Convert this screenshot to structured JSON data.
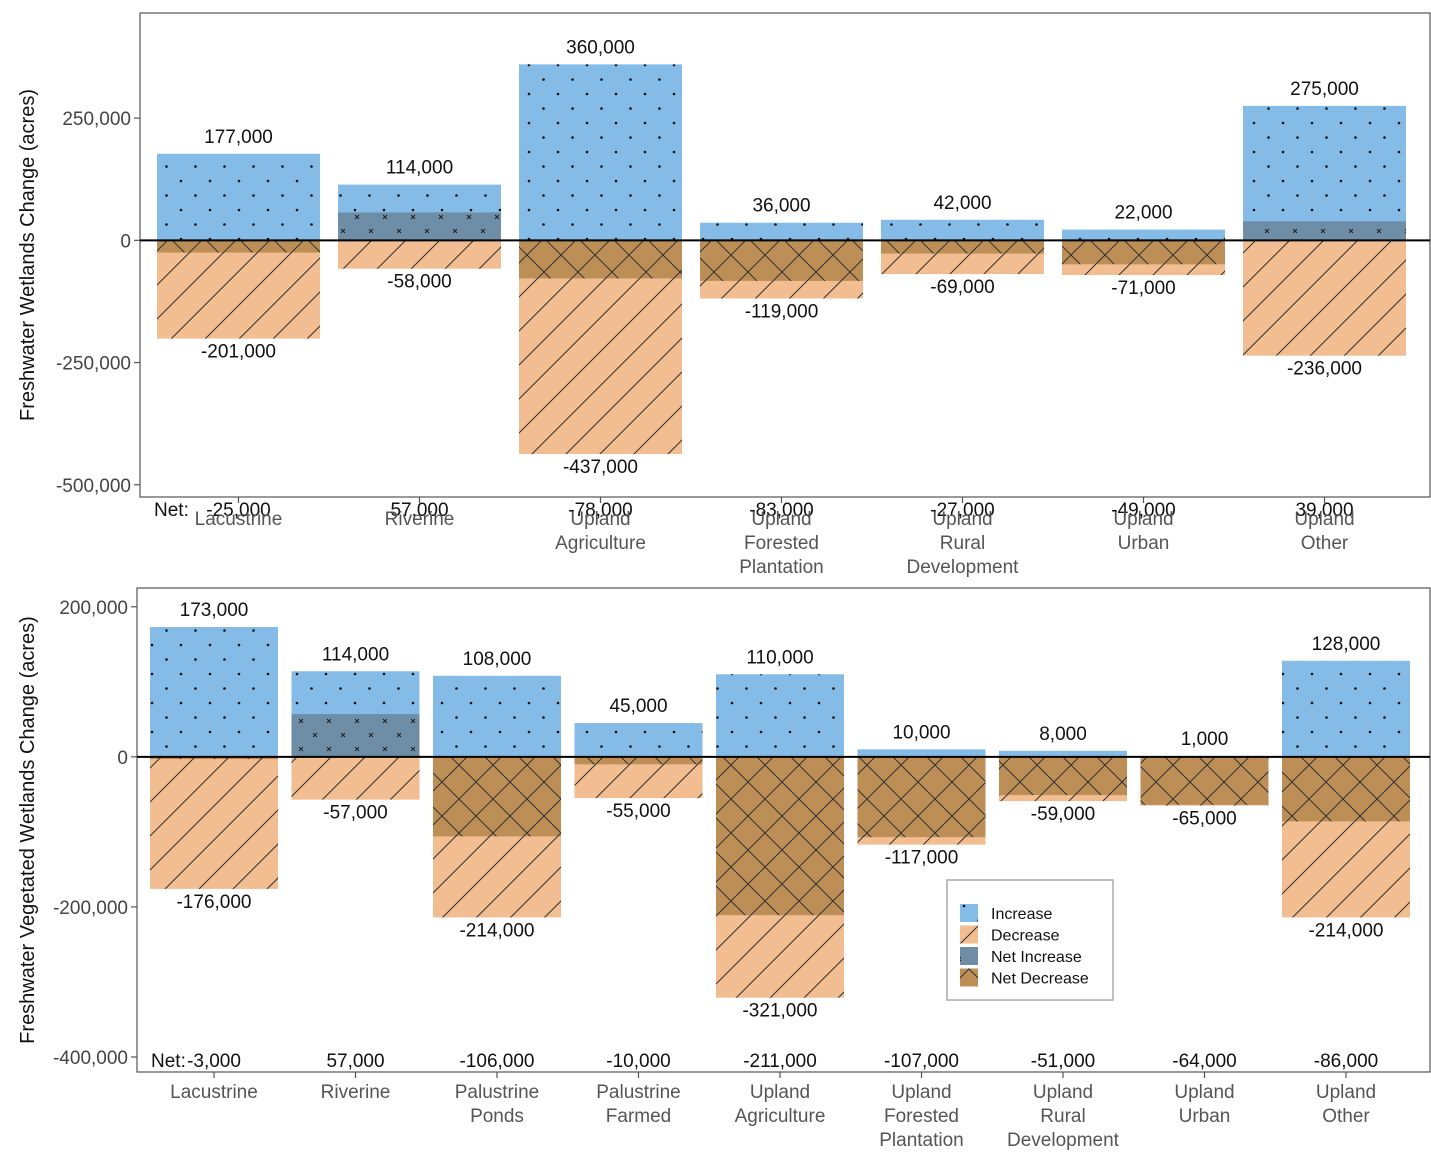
{
  "colors": {
    "increase": "#85bbe7",
    "decrease": "#f2bd90",
    "net_increase": "#6e8ea8",
    "net_decrease": "#bd8f57",
    "panel_border": "#555555",
    "zero_line": "#000000",
    "legend_border": "#aaaaaa"
  },
  "fill_patterns": {
    "increase": "dots",
    "decrease": "diagonal",
    "net_increase": "crosses",
    "net_decrease": "crosshatch"
  },
  "net_prefix": "Net:",
  "legend": {
    "items": [
      {
        "key": "increase",
        "label": "Increase"
      },
      {
        "key": "decrease",
        "label": "Decrease"
      },
      {
        "key": "net_increase",
        "label": "Net Increase"
      },
      {
        "key": "net_decrease",
        "label": "Net Decrease"
      }
    ]
  },
  "chart_data": [
    {
      "type": "bar",
      "ylabel": "Freshwater Wetlands Change (acres)",
      "ylim": [
        -525000,
        465000
      ],
      "yticks": [
        250000,
        0,
        -250000,
        -500000
      ],
      "ytick_labels": [
        "250,000",
        "0",
        "-250,000",
        "-500,000"
      ],
      "categories": [
        "Lacustrine",
        "Riverine",
        "Upland Agriculture",
        "Upland Forested Plantation",
        "Upland Rural Development",
        "Upland Urban",
        "Upland Other"
      ],
      "category_label_lines": [
        [
          "Lacustrine"
        ],
        [
          "Riverine"
        ],
        [
          "Upland",
          "Agriculture"
        ],
        [
          "Upland",
          "Forested",
          "Plantation"
        ],
        [
          "Upland",
          "Rural",
          "Development"
        ],
        [
          "Upland",
          "Urban"
        ],
        [
          "Upland",
          "Other"
        ]
      ],
      "series": [
        {
          "name": "Increase",
          "values": [
            177000,
            114000,
            360000,
            36000,
            42000,
            22000,
            275000
          ]
        },
        {
          "name": "Decrease",
          "values": [
            -201000,
            -58000,
            -437000,
            -119000,
            -69000,
            -71000,
            -236000
          ]
        },
        {
          "name": "Net",
          "values": [
            -25000,
            57000,
            -78000,
            -83000,
            -27000,
            -49000,
            39000
          ]
        }
      ],
      "increase_labels": [
        "177,000",
        "114,000",
        "360,000",
        "36,000",
        "42,000",
        "22,000",
        "275,000"
      ],
      "decrease_labels": [
        "-201,000",
        "-58,000",
        "-437,000",
        "-119,000",
        "-69,000",
        "-71,000",
        "-236,000"
      ],
      "net_labels": [
        "-25,000",
        "57,000",
        "-78,000",
        "-83,000",
        "-27,000",
        "-49,000",
        "39,000"
      ],
      "net_label_y": -550000,
      "legend": false
    },
    {
      "type": "bar",
      "ylabel": "Freshwater Vegetated Wetlands Change (acres)",
      "ylim": [
        -420000,
        225000
      ],
      "yticks": [
        200000,
        0,
        -200000,
        -400000
      ],
      "ytick_labels": [
        "200,000",
        "0",
        "-200,000",
        "-400,000"
      ],
      "categories": [
        "Lacustrine",
        "Riverine",
        "Palustrine Ponds",
        "Palustrine Farmed",
        "Upland Agriculture",
        "Upland Forested Plantation",
        "Upland Rural Development",
        "Upland Urban",
        "Upland Other"
      ],
      "category_label_lines": [
        [
          "Lacustrine"
        ],
        [
          "Riverine"
        ],
        [
          "Palustrine",
          "Ponds"
        ],
        [
          "Palustrine",
          "Farmed"
        ],
        [
          "Upland",
          "Agriculture"
        ],
        [
          "Upland",
          "Forested",
          "Plantation"
        ],
        [
          "Upland",
          "Rural",
          "Development"
        ],
        [
          "Upland",
          "Urban"
        ],
        [
          "Upland",
          "Other"
        ]
      ],
      "series": [
        {
          "name": "Increase",
          "values": [
            173000,
            114000,
            108000,
            45000,
            110000,
            10000,
            8000,
            1000,
            128000
          ]
        },
        {
          "name": "Decrease",
          "values": [
            -176000,
            -57000,
            -214000,
            -55000,
            -321000,
            -117000,
            -59000,
            -65000,
            -214000
          ]
        },
        {
          "name": "Net",
          "values": [
            -3000,
            57000,
            -106000,
            -10000,
            -211000,
            -107000,
            -51000,
            -64000,
            -86000
          ]
        }
      ],
      "increase_labels": [
        "173,000",
        "114,000",
        "108,000",
        "45,000",
        "110,000",
        "10,000",
        "8,000",
        "1,000",
        "128,000"
      ],
      "decrease_labels": [
        "-176,000",
        "-57,000",
        "-214,000",
        "-55,000",
        "-321,000",
        "-117,000",
        "-59,000",
        "-65,000",
        "-214,000"
      ],
      "net_labels": [
        "-3,000",
        "57,000",
        "-106,000",
        "-10,000",
        "-211,000",
        "-107,000",
        "-51,000",
        "-64,000",
        "-86,000"
      ],
      "net_label_y": -404000,
      "legend": true,
      "legend_position": "bottom-right"
    }
  ]
}
